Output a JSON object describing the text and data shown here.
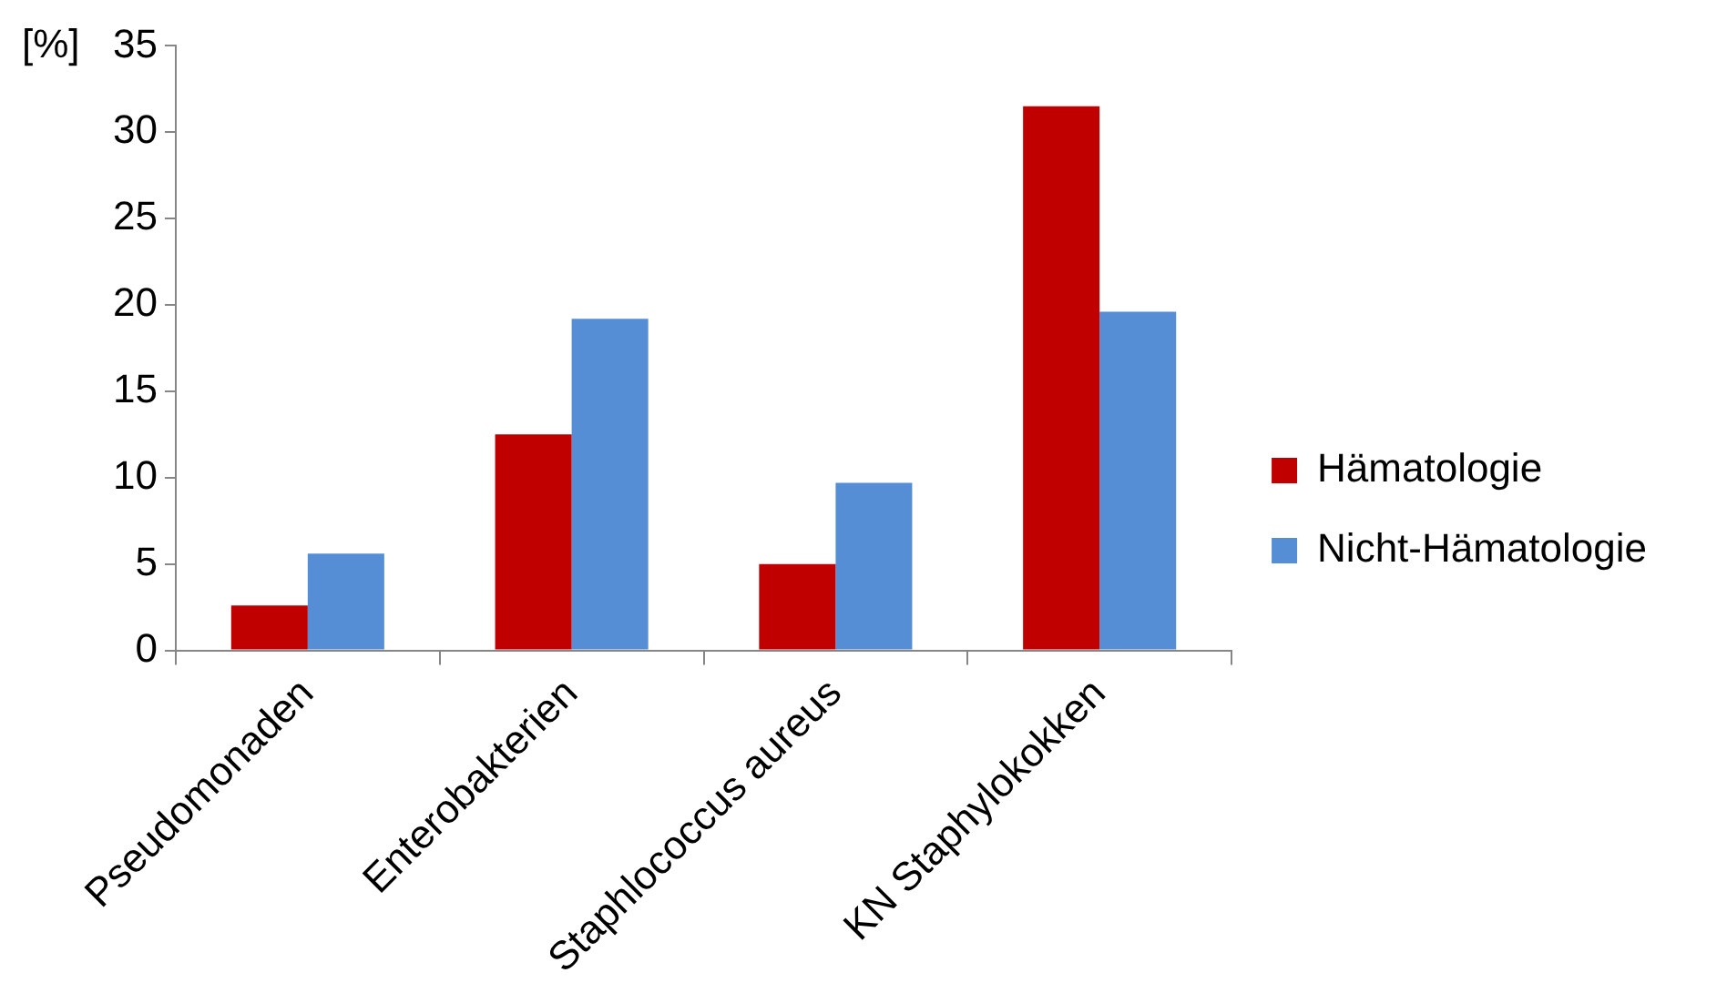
{
  "chart_data": {
    "type": "bar",
    "ylabel": "[%]",
    "categories": [
      "Pseudomonaden",
      "Enterobakterien",
      "Staphlococcus aureus",
      "KN Staphylokokken"
    ],
    "series": [
      {
        "name": "Hämatologie",
        "color": "#c00000",
        "values": [
          2.6,
          12.5,
          5.0,
          31.5
        ]
      },
      {
        "name": "Nicht-Hämatologie",
        "color": "#558ed5",
        "values": [
          5.6,
          19.2,
          9.7,
          19.6
        ]
      }
    ],
    "ylim": [
      0,
      35
    ],
    "yticks": [
      0,
      5,
      10,
      15,
      20,
      25,
      30,
      35
    ],
    "grid": false,
    "legend": "right"
  }
}
